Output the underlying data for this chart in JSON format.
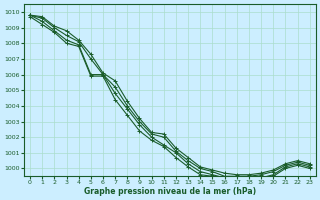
{
  "title": "Graphe pression niveau de la mer (hPa)",
  "background_color": "#cceeff",
  "grid_color": "#aaddcc",
  "line_color": "#1a5c2a",
  "xlim": [
    -0.5,
    23.5
  ],
  "ylim": [
    999.5,
    1010.5
  ],
  "yticks": [
    1000,
    1001,
    1002,
    1003,
    1004,
    1005,
    1006,
    1007,
    1008,
    1009,
    1010
  ],
  "xticks": [
    0,
    1,
    2,
    3,
    4,
    5,
    6,
    7,
    8,
    9,
    10,
    11,
    12,
    13,
    14,
    15,
    16,
    17,
    18,
    19,
    20,
    21,
    22,
    23
  ],
  "series": [
    [
      1009.8,
      1009.7,
      1009.1,
      1008.8,
      1008.2,
      1007.3,
      1006.1,
      1005.6,
      1004.3,
      1003.2,
      1002.3,
      1002.2,
      1001.3,
      1000.7,
      1000.1,
      999.9,
      999.7,
      999.6,
      999.6,
      999.7,
      999.9,
      1000.3,
      1000.5,
      1000.3
    ],
    [
      1009.8,
      1009.6,
      1009.0,
      1008.5,
      1008.1,
      1007.0,
      1006.0,
      1005.2,
      1004.0,
      1003.0,
      1002.2,
      1002.0,
      1001.1,
      1000.5,
      1000.0,
      999.8,
      999.5,
      999.5,
      999.5,
      999.6,
      999.8,
      1000.2,
      1000.4,
      1000.2
    ],
    [
      1009.8,
      1009.4,
      1008.8,
      1008.2,
      1007.9,
      1006.0,
      1006.0,
      1004.8,
      1003.8,
      1002.8,
      1002.0,
      1001.5,
      1001.0,
      1000.3,
      999.8,
      999.6,
      999.4,
      999.3,
      999.3,
      999.4,
      999.6,
      1000.1,
      1000.3,
      1000.1
    ],
    [
      1009.7,
      1009.2,
      1008.7,
      1008.0,
      1007.8,
      1005.9,
      1005.9,
      1004.4,
      1003.4,
      1002.4,
      1001.8,
      1001.4,
      1000.7,
      1000.1,
      999.6,
      999.5,
      999.2,
      999.2,
      999.2,
      999.3,
      999.5,
      1000.0,
      1000.2,
      1000.0
    ]
  ]
}
